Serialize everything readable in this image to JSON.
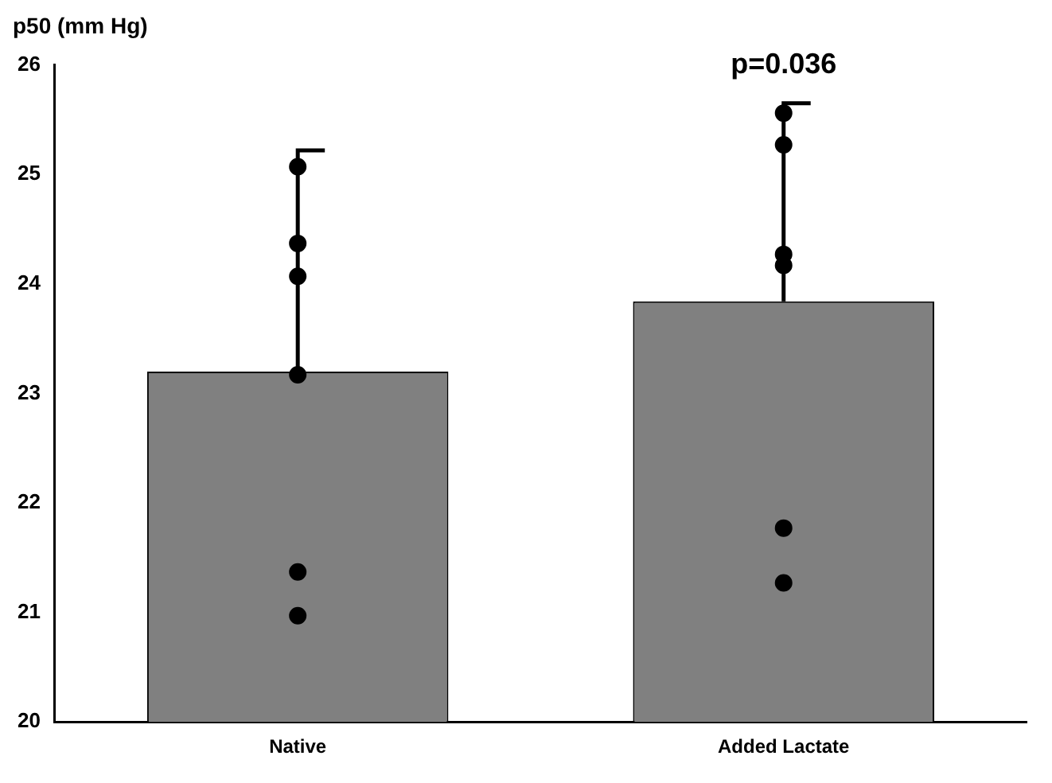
{
  "chart_data": {
    "type": "bar",
    "ylabel": "p50 (mm Hg)",
    "categories": [
      "Native",
      "Added Lactate"
    ],
    "series": [
      {
        "type": "bar",
        "color": "#808080",
        "values": [
          23.2,
          23.84
        ],
        "errors": [
          [
            23.2,
            25.22
          ],
          [
            23.84,
            25.65
          ]
        ]
      },
      {
        "type": "scatter",
        "color": "#000000",
        "x": [
          "Native",
          "Native",
          "Native",
          "Native",
          "Native",
          "Native",
          "Added Lactate",
          "Added Lactate",
          "Added Lactate",
          "Added Lactate",
          "Added Lactate",
          "Added Lactate"
        ],
        "values": [
          25.07,
          24.37,
          24.07,
          23.17,
          21.37,
          20.97,
          25.56,
          25.27,
          24.27,
          24.17,
          21.77,
          21.27
        ]
      }
    ],
    "ylim": [
      20,
      26
    ],
    "yticks": [
      20,
      21,
      22,
      23,
      24,
      25,
      26
    ],
    "grid": false,
    "legend": false,
    "marker": "circle",
    "annotations": [
      "p=0.036"
    ]
  }
}
